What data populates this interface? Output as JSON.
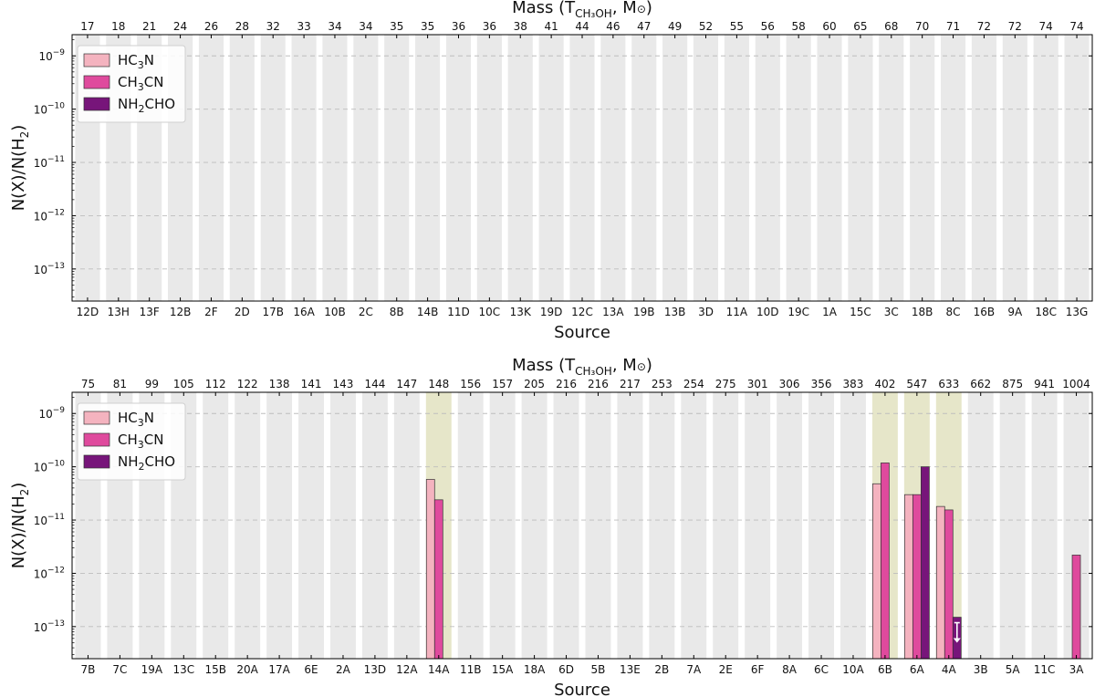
{
  "chart_data": [
    {
      "type": "bar",
      "panel": "top",
      "xlabel": "Source",
      "ylabel_parts": {
        "a": "N(X)/N(H",
        "sub": "2",
        "b": ")"
      },
      "top_axis_label_parts": {
        "a": "Mass (T",
        "sub": "CH₃OH",
        "b": ", M",
        "sym": "⊙",
        "c": ")"
      },
      "yscale": "log",
      "ylim": [
        2.5e-14,
        2.5e-09
      ],
      "yticks": [
        {
          "exp": "-9",
          "value": 1e-09
        },
        {
          "exp": "-10",
          "value": 1e-10
        },
        {
          "exp": "-11",
          "value": 1e-11
        },
        {
          "exp": "-12",
          "value": 1e-12
        },
        {
          "exp": "-13",
          "value": 1e-13
        }
      ],
      "tick_base": "10",
      "legend_position": "top-left",
      "categories": [
        "12D",
        "13H",
        "13F",
        "12B",
        "2F",
        "2D",
        "17B",
        "16A",
        "10B",
        "2C",
        "8B",
        "14B",
        "11D",
        "10C",
        "13K",
        "19D",
        "12C",
        "13A",
        "19B",
        "13B",
        "3D",
        "11A",
        "10D",
        "19C",
        "1A",
        "15C",
        "3C",
        "18B",
        "8C",
        "16B",
        "9A",
        "18C",
        "13G"
      ],
      "mass": [
        "17",
        "18",
        "21",
        "24",
        "26",
        "28",
        "32",
        "33",
        "34",
        "34",
        "35",
        "35",
        "36",
        "36",
        "38",
        "41",
        "44",
        "46",
        "47",
        "49",
        "52",
        "55",
        "56",
        "58",
        "60",
        "65",
        "68",
        "70",
        "71",
        "72",
        "72",
        "74",
        "74"
      ],
      "highlighted": [],
      "series": [
        {
          "name_parts": {
            "a": "HC",
            "sub": "3",
            "b": "N"
          },
          "color": "#f4b3bf",
          "values": [
            null,
            null,
            null,
            null,
            null,
            null,
            null,
            null,
            null,
            null,
            null,
            null,
            null,
            null,
            null,
            null,
            null,
            null,
            null,
            null,
            null,
            null,
            null,
            null,
            null,
            null,
            null,
            null,
            null,
            null,
            null,
            null,
            null
          ]
        },
        {
          "name_parts": {
            "a": "CH",
            "sub": "3",
            "b": "CN"
          },
          "color": "#df4a9d",
          "values": [
            null,
            null,
            null,
            null,
            null,
            null,
            null,
            null,
            null,
            null,
            null,
            null,
            null,
            null,
            null,
            null,
            null,
            null,
            null,
            null,
            null,
            null,
            null,
            null,
            null,
            null,
            null,
            null,
            null,
            null,
            null,
            null,
            null
          ]
        },
        {
          "name_parts": {
            "a": "NH",
            "sub": "2",
            "b": "CHO"
          },
          "color": "#77157a",
          "values": [
            null,
            null,
            null,
            null,
            null,
            null,
            null,
            null,
            null,
            null,
            null,
            null,
            null,
            null,
            null,
            null,
            null,
            null,
            null,
            null,
            null,
            null,
            null,
            null,
            null,
            null,
            null,
            null,
            null,
            null,
            null,
            null,
            null
          ]
        }
      ],
      "upper_limits": []
    },
    {
      "type": "bar",
      "panel": "bottom",
      "xlabel": "Source",
      "ylabel_parts": {
        "a": "N(X)/N(H",
        "sub": "2",
        "b": ")"
      },
      "top_axis_label_parts": {
        "a": "Mass (T",
        "sub": "CH₃OH",
        "b": ", M",
        "sym": "⊙",
        "c": ")"
      },
      "yscale": "log",
      "ylim": [
        2.5e-14,
        2.5e-09
      ],
      "yticks": [
        {
          "exp": "-9",
          "value": 1e-09
        },
        {
          "exp": "-10",
          "value": 1e-10
        },
        {
          "exp": "-11",
          "value": 1e-11
        },
        {
          "exp": "-12",
          "value": 1e-12
        },
        {
          "exp": "-13",
          "value": 1e-13
        }
      ],
      "tick_base": "10",
      "legend_position": "top-left",
      "categories": [
        "7B",
        "7C",
        "19A",
        "13C",
        "15B",
        "20A",
        "17A",
        "6E",
        "2A",
        "13D",
        "12A",
        "14A",
        "11B",
        "15A",
        "18A",
        "6D",
        "5B",
        "13E",
        "2B",
        "7A",
        "2E",
        "6F",
        "8A",
        "6C",
        "10A",
        "6B",
        "6A",
        "4A",
        "3B",
        "5A",
        "11C",
        "3A"
      ],
      "mass": [
        "75",
        "81",
        "99",
        "105",
        "112",
        "122",
        "138",
        "141",
        "143",
        "144",
        "147",
        "148",
        "156",
        "157",
        "205",
        "216",
        "216",
        "217",
        "253",
        "254",
        "275",
        "301",
        "306",
        "356",
        "383",
        "402",
        "547",
        "633",
        "662",
        "875",
        "941",
        "1004"
      ],
      "highlighted": [
        "14A",
        "6B",
        "6A",
        "4A"
      ],
      "series": [
        {
          "name_parts": {
            "a": "HC",
            "sub": "3",
            "b": "N"
          },
          "color": "#f4b3bf",
          "values": [
            null,
            null,
            null,
            null,
            null,
            null,
            null,
            null,
            null,
            null,
            null,
            5.8e-11,
            null,
            null,
            null,
            null,
            null,
            null,
            null,
            null,
            null,
            null,
            null,
            null,
            null,
            4.8e-11,
            3e-11,
            1.8e-11,
            null,
            null,
            null,
            null
          ]
        },
        {
          "name_parts": {
            "a": "CH",
            "sub": "3",
            "b": "CN"
          },
          "color": "#df4a9d",
          "values": [
            null,
            null,
            null,
            null,
            null,
            null,
            null,
            null,
            null,
            null,
            null,
            2.4e-11,
            null,
            null,
            null,
            null,
            null,
            null,
            null,
            null,
            null,
            null,
            null,
            null,
            null,
            1.18e-10,
            3e-11,
            1.55e-11,
            null,
            null,
            null,
            2.2e-12
          ]
        },
        {
          "name_parts": {
            "a": "NH",
            "sub": "2",
            "b": "CHO"
          },
          "color": "#77157a",
          "values": [
            null,
            null,
            null,
            null,
            null,
            null,
            null,
            null,
            null,
            null,
            null,
            null,
            null,
            null,
            null,
            null,
            null,
            null,
            null,
            null,
            null,
            null,
            null,
            null,
            null,
            null,
            1e-10,
            1.5e-13,
            null,
            null,
            null,
            null
          ]
        }
      ],
      "upper_limits": [
        {
          "category": "4A",
          "series": 2
        }
      ]
    }
  ]
}
